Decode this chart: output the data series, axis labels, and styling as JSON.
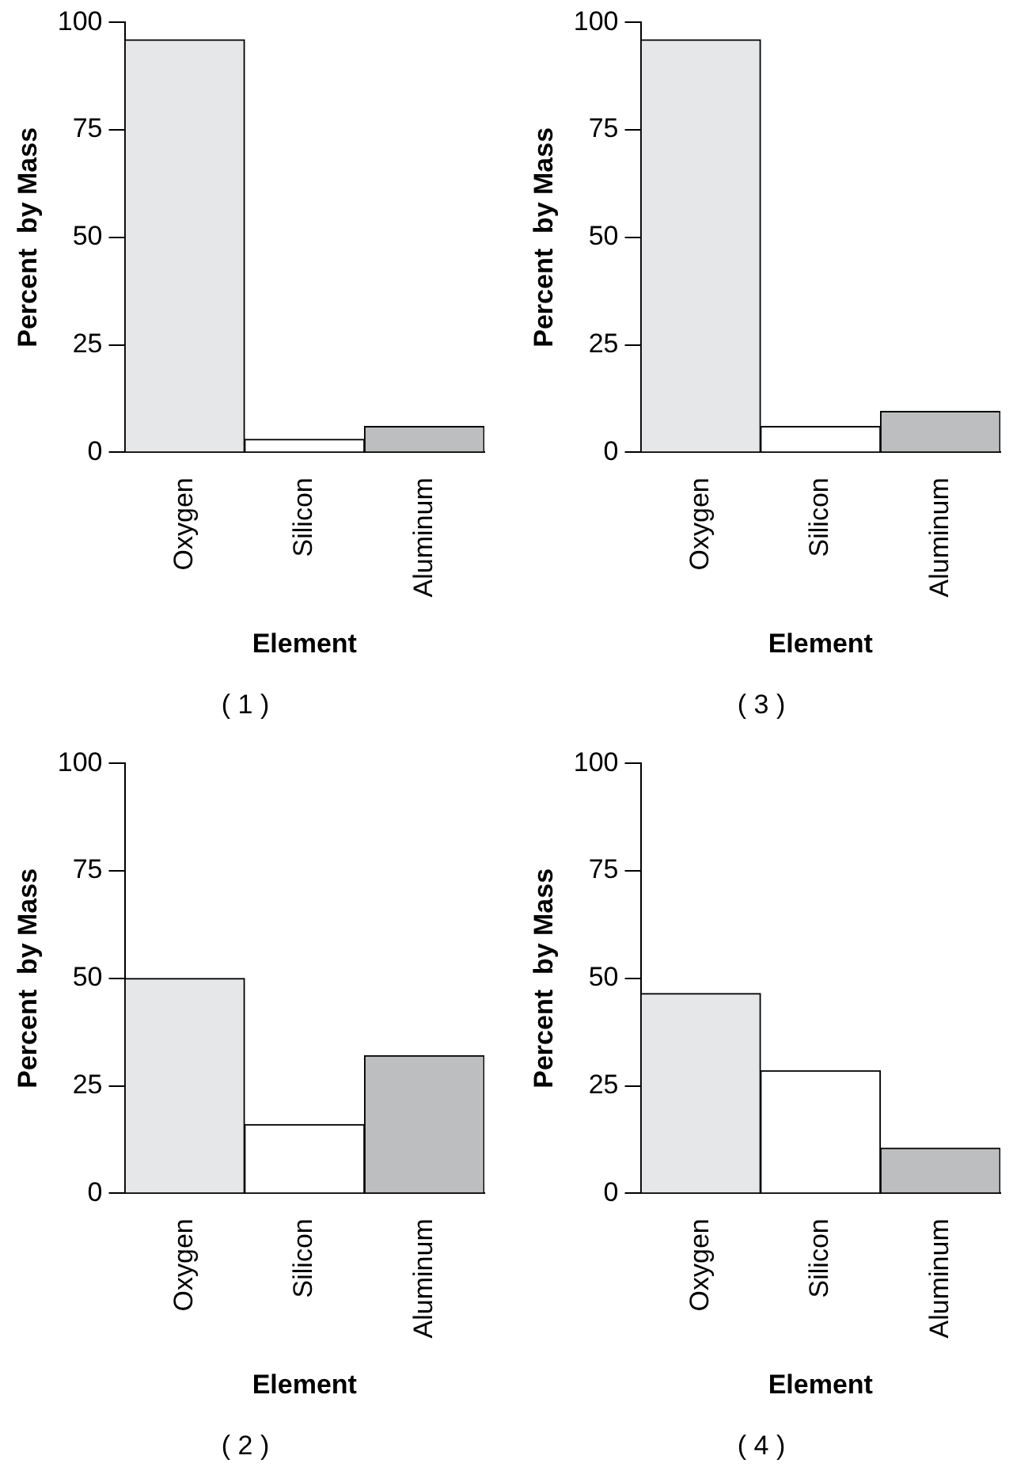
{
  "chart_data": [
    {
      "type": "bar",
      "title": "( 1 )",
      "xlabel": "Element",
      "ylabel": "Percent  by Mass",
      "categories": [
        "Oxygen",
        "Silicon",
        "Aluminum"
      ],
      "values": [
        96,
        3,
        6
      ],
      "colors": [
        "#e6e7e9",
        "#ffffff",
        "#bdbebf"
      ],
      "ylim": [
        0,
        100
      ],
      "yticks": [
        0,
        25,
        50,
        75,
        100
      ]
    },
    {
      "type": "bar",
      "title": "( 3 )",
      "xlabel": "Element",
      "ylabel": "Percent  by Mass",
      "categories": [
        "Oxygen",
        "Silicon",
        "Aluminum"
      ],
      "values": [
        96,
        6,
        9.5
      ],
      "colors": [
        "#e6e7e9",
        "#ffffff",
        "#bdbebf"
      ],
      "ylim": [
        0,
        100
      ],
      "yticks": [
        0,
        25,
        50,
        75,
        100
      ]
    },
    {
      "type": "bar",
      "title": "( 2 )",
      "xlabel": "Element",
      "ylabel": "Percent  by Mass",
      "categories": [
        "Oxygen",
        "Silicon",
        "Aluminum"
      ],
      "values": [
        50,
        16,
        32
      ],
      "colors": [
        "#e6e7e9",
        "#ffffff",
        "#bdbebf"
      ],
      "ylim": [
        0,
        100
      ],
      "yticks": [
        0,
        25,
        50,
        75,
        100
      ]
    },
    {
      "type": "bar",
      "title": "( 4 )",
      "xlabel": "Element",
      "ylabel": "Percent  by Mass",
      "categories": [
        "Oxygen",
        "Silicon",
        "Aluminum"
      ],
      "values": [
        46.5,
        28.5,
        10.5
      ],
      "colors": [
        "#e6e7e9",
        "#ffffff",
        "#bdbebf"
      ],
      "ylim": [
        0,
        100
      ],
      "yticks": [
        0,
        25,
        50,
        75,
        100
      ]
    }
  ]
}
